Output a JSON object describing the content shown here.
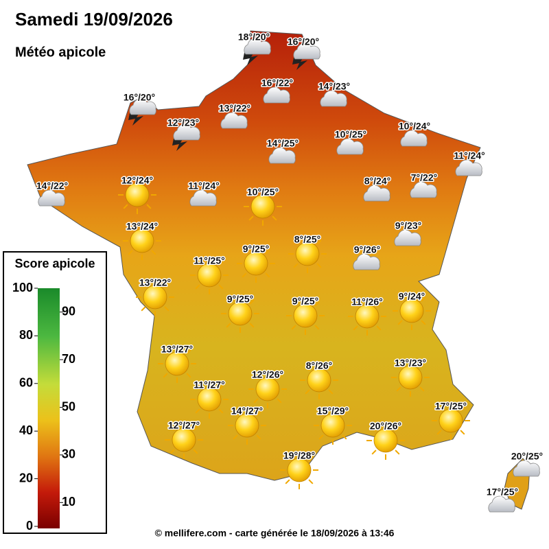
{
  "header": {
    "title": "Samedi 19/09/2026",
    "subtitle": "Météo apicole"
  },
  "legend": {
    "title": "Score apicole",
    "ticks": [
      0,
      10,
      20,
      30,
      40,
      50,
      60,
      70,
      80,
      90,
      100
    ]
  },
  "stations": [
    {
      "label": "18°/20°"
    },
    {
      "label": "16°/20°"
    },
    {
      "label": "16°/22°"
    },
    {
      "label": "14°/23°"
    },
    {
      "label": "16°/20°"
    },
    {
      "label": "13°/22°"
    },
    {
      "label": "12°/23°"
    },
    {
      "label": "10°/24°"
    },
    {
      "label": "14°/25°"
    },
    {
      "label": "10°/25°"
    },
    {
      "label": "11°/24°"
    },
    {
      "label": "14°/22°"
    },
    {
      "label": "12°/24°"
    },
    {
      "label": "11°/24°"
    },
    {
      "label": "10°/25°"
    },
    {
      "label": "8°/24°"
    },
    {
      "label": "7°/22°"
    },
    {
      "label": "13°/24°"
    },
    {
      "label": "9°/23°"
    },
    {
      "label": "8°/25°"
    },
    {
      "label": "9°/25°"
    },
    {
      "label": "9°/26°"
    },
    {
      "label": "11°/25°"
    },
    {
      "label": "13°/22°"
    },
    {
      "label": "9°/25°"
    },
    {
      "label": "9°/25°"
    },
    {
      "label": "11°/26°"
    },
    {
      "label": "9°/24°"
    },
    {
      "label": "13°/27°"
    },
    {
      "label": "8°/26°"
    },
    {
      "label": "13°/23°"
    },
    {
      "label": "12°/26°"
    },
    {
      "label": "11°/27°"
    },
    {
      "label": "17°/25°"
    },
    {
      "label": "14°/27°"
    },
    {
      "label": "15°/29°"
    },
    {
      "label": "12°/27°"
    },
    {
      "label": "20°/26°"
    },
    {
      "label": "19°/28°"
    },
    {
      "label": "20°/25°"
    },
    {
      "label": "17°/25°"
    }
  ],
  "footer": "© mellifere.com - carte générée le 18/09/2026 à 13:46"
}
